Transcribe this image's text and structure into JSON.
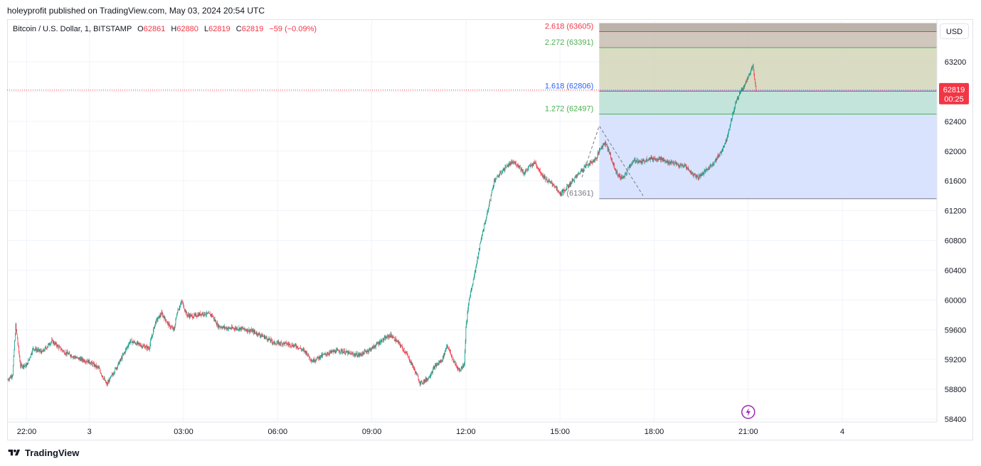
{
  "caption": "holeyprofit published on TradingView.com, May 03, 2024 20:54 UTC",
  "legend": {
    "symbol": "Bitcoin / U.S. Dollar, 1, BITSTAMP",
    "o_label": "O",
    "o_value": "62861",
    "h_label": "H",
    "h_value": "62880",
    "l_label": "L",
    "l_value": "62819",
    "c_label": "C",
    "c_value": "62819",
    "change": "−59 (−0.09%)"
  },
  "currency_button": "USD",
  "last_price_tag": {
    "price": "62819",
    "countdown": "00:25"
  },
  "footer_brand": "TradingView",
  "colors": {
    "up": "#089981",
    "down": "#f23645",
    "fib_blue": "#2962ff",
    "fib_green": "#4caf50"
  },
  "chart_data": {
    "type": "candlestick",
    "title": "Bitcoin / U.S. Dollar, 1, BITSTAMP",
    "y_axis_ticks": [
      58400,
      58800,
      59200,
      59600,
      60000,
      60400,
      60800,
      61200,
      61600,
      62000,
      62400,
      62800,
      63200
    ],
    "y_axis_tick_labels": [
      "58400",
      "58800",
      "59200",
      "59600",
      "60000",
      "60400",
      "60800",
      "61200",
      "61600",
      "62000",
      "62400",
      "",
      "63200"
    ],
    "ylim": [
      58400,
      63700
    ],
    "x_axis_ticks": [
      {
        "hour": 22.0,
        "label": "22:00"
      },
      {
        "hour": 24.0,
        "label": "3"
      },
      {
        "hour": 27.0,
        "label": "03:00"
      },
      {
        "hour": 30.0,
        "label": "06:00"
      },
      {
        "hour": 33.0,
        "label": "09:00"
      },
      {
        "hour": 36.0,
        "label": "12:00"
      },
      {
        "hour": 39.0,
        "label": "15:00"
      },
      {
        "hour": 42.0,
        "label": "18:00"
      },
      {
        "hour": 45.0,
        "label": "21:00"
      },
      {
        "hour": 48.0,
        "label": "4"
      }
    ],
    "xlim_hours": [
      21.4,
      50.8
    ],
    "price_path": [
      [
        21.4,
        58930
      ],
      [
        21.55,
        59000
      ],
      [
        21.65,
        59660
      ],
      [
        21.8,
        59120
      ],
      [
        22.0,
        59120
      ],
      [
        22.2,
        59350
      ],
      [
        22.5,
        59300
      ],
      [
        22.8,
        59450
      ],
      [
        23.2,
        59300
      ],
      [
        23.6,
        59220
      ],
      [
        24.0,
        59170
      ],
      [
        24.3,
        59080
      ],
      [
        24.55,
        58860
      ],
      [
        24.8,
        59050
      ],
      [
        25.0,
        59200
      ],
      [
        25.3,
        59450
      ],
      [
        25.6,
        59400
      ],
      [
        25.9,
        59350
      ],
      [
        26.1,
        59700
      ],
      [
        26.3,
        59820
      ],
      [
        26.55,
        59650
      ],
      [
        26.7,
        59600
      ],
      [
        26.8,
        59850
      ],
      [
        26.95,
        59980
      ],
      [
        27.1,
        59800
      ],
      [
        27.3,
        59780
      ],
      [
        27.6,
        59820
      ],
      [
        27.9,
        59800
      ],
      [
        28.1,
        59650
      ],
      [
        28.4,
        59620
      ],
      [
        28.8,
        59620
      ],
      [
        29.2,
        59580
      ],
      [
        29.6,
        59500
      ],
      [
        29.9,
        59420
      ],
      [
        30.2,
        59420
      ],
      [
        30.6,
        59380
      ],
      [
        30.9,
        59300
      ],
      [
        31.1,
        59180
      ],
      [
        31.4,
        59250
      ],
      [
        31.7,
        59300
      ],
      [
        32.0,
        59320
      ],
      [
        32.3,
        59280
      ],
      [
        32.6,
        59260
      ],
      [
        33.0,
        59350
      ],
      [
        33.3,
        59450
      ],
      [
        33.6,
        59530
      ],
      [
        33.9,
        59400
      ],
      [
        34.1,
        59280
      ],
      [
        34.3,
        59120
      ],
      [
        34.55,
        58880
      ],
      [
        34.8,
        58950
      ],
      [
        35.0,
        59100
      ],
      [
        35.25,
        59200
      ],
      [
        35.4,
        59400
      ],
      [
        35.6,
        59180
      ],
      [
        35.8,
        59050
      ],
      [
        35.95,
        59150
      ],
      [
        36.0,
        59620
      ],
      [
        36.1,
        60000
      ],
      [
        36.3,
        60400
      ],
      [
        36.5,
        60850
      ],
      [
        36.7,
        61200
      ],
      [
        36.9,
        61600
      ],
      [
        37.1,
        61700
      ],
      [
        37.3,
        61800
      ],
      [
        37.5,
        61850
      ],
      [
        37.7,
        61800
      ],
      [
        37.85,
        61700
      ],
      [
        38.0,
        61780
      ],
      [
        38.2,
        61850
      ],
      [
        38.4,
        61700
      ],
      [
        38.6,
        61600
      ],
      [
        38.8,
        61550
      ],
      [
        39.0,
        61420
      ],
      [
        39.2,
        61500
      ],
      [
        39.4,
        61600
      ],
      [
        39.6,
        61700
      ],
      [
        39.8,
        61800
      ],
      [
        40.0,
        61850
      ],
      [
        40.15,
        61900
      ],
      [
        40.3,
        62050
      ],
      [
        40.45,
        62120
      ],
      [
        40.6,
        61950
      ],
      [
        40.75,
        61750
      ],
      [
        40.9,
        61650
      ],
      [
        41.05,
        61650
      ],
      [
        41.2,
        61800
      ],
      [
        41.4,
        61880
      ],
      [
        41.6,
        61850
      ],
      [
        41.8,
        61900
      ],
      [
        42.0,
        61900
      ],
      [
        42.2,
        61900
      ],
      [
        42.4,
        61850
      ],
      [
        42.6,
        61850
      ],
      [
        42.8,
        61800
      ],
      [
        43.0,
        61800
      ],
      [
        43.2,
        61700
      ],
      [
        43.4,
        61650
      ],
      [
        43.6,
        61720
      ],
      [
        43.8,
        61800
      ],
      [
        44.0,
        61900
      ],
      [
        44.15,
        62000
      ],
      [
        44.3,
        62150
      ],
      [
        44.45,
        62400
      ],
      [
        44.6,
        62650
      ],
      [
        44.75,
        62800
      ],
      [
        44.9,
        62900
      ],
      [
        45.05,
        63050
      ],
      [
        45.15,
        63150
      ],
      [
        45.2,
        62950
      ],
      [
        45.25,
        62819
      ]
    ],
    "fibonacci": {
      "base_label": "0 (61361)",
      "levels": [
        {
          "ratio": "2.618",
          "price": 63605,
          "label": "2.618 (63605)",
          "color": "#f23645"
        },
        {
          "ratio": "2.272",
          "price": 63391,
          "label": "2.272 (63391)",
          "color": "#4caf50"
        },
        {
          "ratio": "1.618",
          "price": 62806,
          "label": "1.618 (62806)",
          "color": "#2962ff"
        },
        {
          "ratio": "1.272",
          "price": 62497,
          "label": "1.272 (62497)",
          "color": "#4caf50"
        },
        {
          "ratio": "0",
          "price": 61361,
          "label": "0 (61361)",
          "color": "#787b86"
        }
      ],
      "zones": [
        {
          "from": 63605,
          "to": 63720,
          "color": "#b2a59a"
        },
        {
          "from": 63391,
          "to": 63605,
          "color": "#c8bdb1"
        },
        {
          "from": 62806,
          "to": 63391,
          "color": "#d2d5b8"
        },
        {
          "from": 62497,
          "to": 62806,
          "color": "#b9dfd4"
        },
        {
          "from": 61361,
          "to": 62497,
          "color": "#d3defe"
        }
      ],
      "start_hour": 40.25,
      "end_hour": 50.8,
      "trend_line": [
        [
          39.7,
          61650
        ],
        [
          40.25,
          62340
        ],
        [
          41.65,
          61400
        ]
      ]
    },
    "current_price": 62819
  }
}
